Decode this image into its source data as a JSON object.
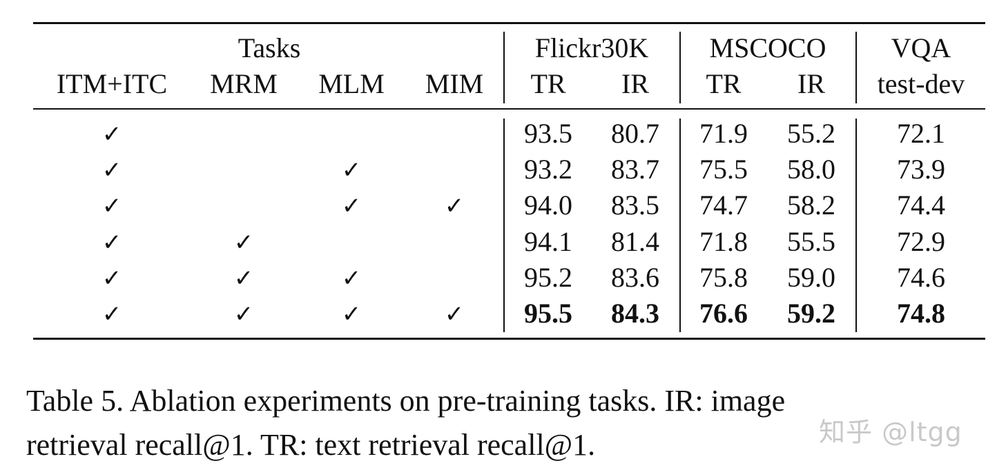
{
  "header": {
    "tasks_label": "Tasks",
    "flickr_label": "Flickr30K",
    "mscoco_label": "MSCOCO",
    "vqa_label": "VQA",
    "task_columns": [
      "ITM+ITC",
      "MRM",
      "MLM",
      "MIM"
    ],
    "metric_columns": [
      "TR",
      "IR",
      "TR",
      "IR",
      "test-dev"
    ]
  },
  "check_glyph": "✓",
  "rows": [
    {
      "checks": [
        true,
        false,
        false,
        false
      ],
      "values": [
        "93.5",
        "80.7",
        "71.9",
        "55.2",
        "72.1"
      ],
      "bold": false
    },
    {
      "checks": [
        true,
        false,
        true,
        false
      ],
      "values": [
        "93.2",
        "83.7",
        "75.5",
        "58.0",
        "73.9"
      ],
      "bold": false
    },
    {
      "checks": [
        true,
        false,
        true,
        true
      ],
      "values": [
        "94.0",
        "83.5",
        "74.7",
        "58.2",
        "74.4"
      ],
      "bold": false
    },
    {
      "checks": [
        true,
        true,
        false,
        false
      ],
      "values": [
        "94.1",
        "81.4",
        "71.8",
        "55.5",
        "72.9"
      ],
      "bold": false
    },
    {
      "checks": [
        true,
        true,
        true,
        false
      ],
      "values": [
        "95.2",
        "83.6",
        "75.8",
        "59.0",
        "74.6"
      ],
      "bold": false
    },
    {
      "checks": [
        true,
        true,
        true,
        true
      ],
      "values": [
        "95.5",
        "84.3",
        "76.6",
        "59.2",
        "74.8"
      ],
      "bold": true
    }
  ],
  "caption": {
    "line1": "Table 5.  Ablation experiments on pre-training tasks.  IR: image",
    "line2": "retrieval recall@1. TR: text retrieval recall@1."
  },
  "watermark": "知乎 @ltgg"
}
